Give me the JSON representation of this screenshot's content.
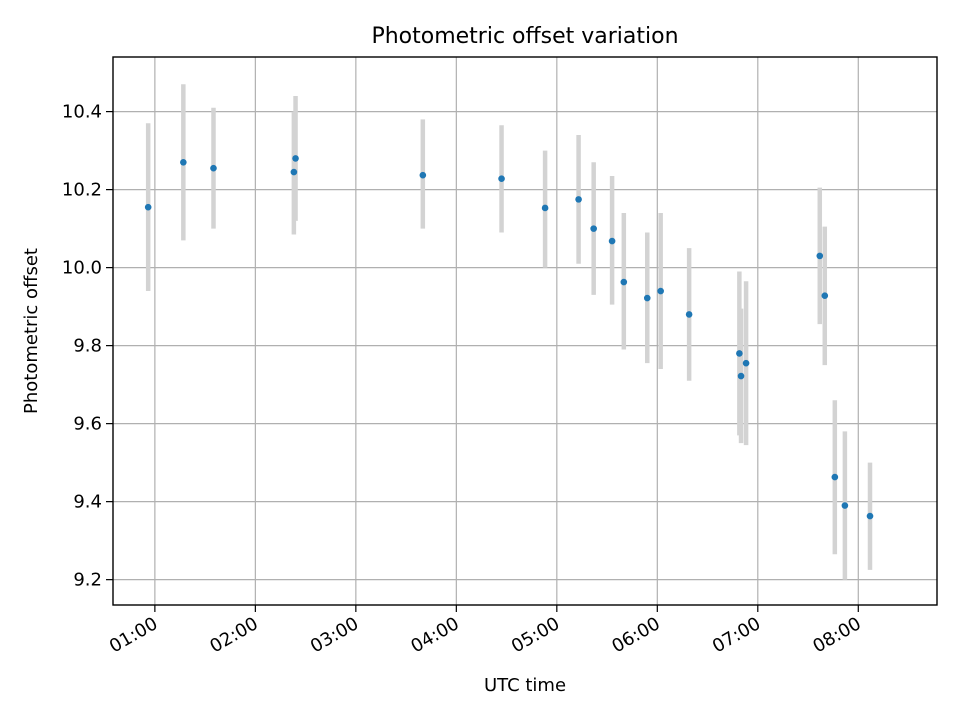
{
  "colors": {
    "marker": "#1f77b4",
    "errorbar": "#d3d3d3",
    "grid": "#b0b0b0"
  },
  "chart_data": {
    "type": "scatter",
    "title": "Photometric offset variation",
    "xlabel": "UTC time",
    "ylabel": "Photometric offset",
    "grid": true,
    "x_axis_kind": "time",
    "xlim": [
      "00:35",
      "08:47"
    ],
    "ylim": [
      9.135,
      10.54
    ],
    "x_tick_labels": [
      "01:00",
      "02:00",
      "03:00",
      "04:00",
      "05:00",
      "06:00",
      "07:00",
      "08:00"
    ],
    "y_tick_values": [
      9.2,
      9.4,
      9.6,
      9.8,
      10.0,
      10.2,
      10.4
    ],
    "y_tick_labels": [
      "9.2",
      "9.4",
      "9.6",
      "9.8",
      "10.0",
      "10.2",
      "10.4"
    ],
    "series": [
      {
        "points": [
          {
            "x": "00:56",
            "y": 10.155,
            "ylo": 9.94,
            "yhi": 10.37
          },
          {
            "x": "01:17",
            "y": 10.27,
            "ylo": 10.07,
            "yhi": 10.47
          },
          {
            "x": "01:35",
            "y": 10.255,
            "ylo": 10.1,
            "yhi": 10.41
          },
          {
            "x": "02:23",
            "y": 10.245,
            "ylo": 10.085,
            "yhi": 10.4
          },
          {
            "x": "02:24",
            "y": 10.28,
            "ylo": 10.12,
            "yhi": 10.44
          },
          {
            "x": "03:40",
            "y": 10.237,
            "ylo": 10.1,
            "yhi": 10.38
          },
          {
            "x": "04:27",
            "y": 10.228,
            "ylo": 10.09,
            "yhi": 10.365
          },
          {
            "x": "04:53",
            "y": 10.153,
            "ylo": 10.0,
            "yhi": 10.3
          },
          {
            "x": "05:13",
            "y": 10.175,
            "ylo": 10.01,
            "yhi": 10.34
          },
          {
            "x": "05:22",
            "y": 10.1,
            "ylo": 9.93,
            "yhi": 10.27
          },
          {
            "x": "05:33",
            "y": 10.068,
            "ylo": 9.905,
            "yhi": 10.235
          },
          {
            "x": "05:40",
            "y": 9.963,
            "ylo": 9.79,
            "yhi": 10.14
          },
          {
            "x": "05:54",
            "y": 9.922,
            "ylo": 9.755,
            "yhi": 10.09
          },
          {
            "x": "06:02",
            "y": 9.94,
            "ylo": 9.74,
            "yhi": 10.14
          },
          {
            "x": "06:19",
            "y": 9.88,
            "ylo": 9.71,
            "yhi": 10.05
          },
          {
            "x": "06:49",
            "y": 9.78,
            "ylo": 9.57,
            "yhi": 9.99
          },
          {
            "x": "06:50",
            "y": 9.722,
            "ylo": 9.55,
            "yhi": 9.895
          },
          {
            "x": "06:53",
            "y": 9.755,
            "ylo": 9.545,
            "yhi": 9.965
          },
          {
            "x": "07:37",
            "y": 10.03,
            "ylo": 9.855,
            "yhi": 10.205
          },
          {
            "x": "07:40",
            "y": 9.928,
            "ylo": 9.75,
            "yhi": 10.105
          },
          {
            "x": "07:46",
            "y": 9.463,
            "ylo": 9.265,
            "yhi": 9.66
          },
          {
            "x": "07:52",
            "y": 9.39,
            "ylo": 9.2,
            "yhi": 9.58
          },
          {
            "x": "08:07",
            "y": 9.363,
            "ylo": 9.225,
            "yhi": 9.5
          }
        ]
      }
    ]
  }
}
